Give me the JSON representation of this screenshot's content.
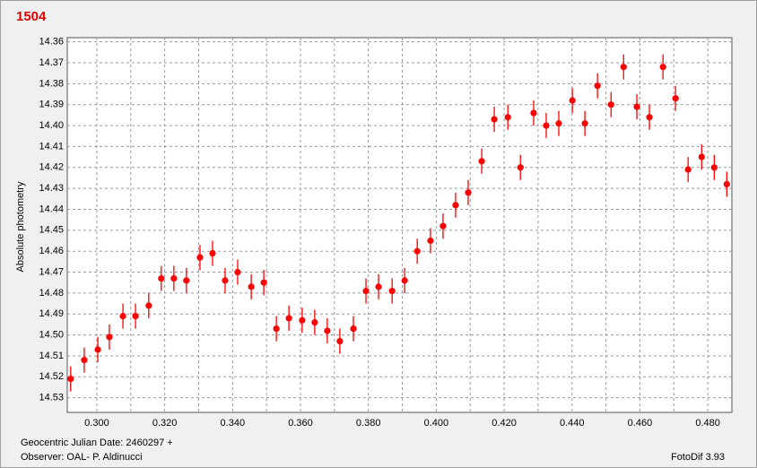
{
  "chart_data": {
    "type": "scatter",
    "title": "1504",
    "ylabel": "Absolute photometry",
    "footer_left": [
      "Geocentric Julian Date: 2460297 +",
      "Observer: OAL- P. Aldinucci"
    ],
    "footer_right": "FotoDif 3.93",
    "xlim": [
      0.2913,
      0.4871
    ],
    "ylim": [
      14.358,
      14.537
    ],
    "y_inverted": true,
    "grid": true,
    "xticks": [
      {
        "value": 0.3,
        "label": "0.300"
      },
      {
        "value": 0.32,
        "label": "0.320"
      },
      {
        "value": 0.34,
        "label": "0.340"
      },
      {
        "value": 0.36,
        "label": "0.360"
      },
      {
        "value": 0.38,
        "label": "0.380"
      },
      {
        "value": 0.4,
        "label": "0.400"
      },
      {
        "value": 0.42,
        "label": "0.420"
      },
      {
        "value": 0.44,
        "label": "0.440"
      },
      {
        "value": 0.46,
        "label": "0.460"
      },
      {
        "value": 0.48,
        "label": "0.480"
      }
    ],
    "xminor_ticks": [
      0.31,
      0.33,
      0.35,
      0.37,
      0.39,
      0.41,
      0.43,
      0.45,
      0.47
    ],
    "yticks": [
      14.36,
      14.37,
      14.38,
      14.39,
      {
        "value": 14.4,
        "label": "14.40"
      },
      14.41,
      14.42,
      14.43,
      14.44,
      14.45,
      14.46,
      14.47,
      14.48,
      14.49,
      {
        "value": 14.5,
        "label": "14.50"
      },
      14.51,
      14.52,
      14.53
    ],
    "series": [
      {
        "name": "1504",
        "color": "#ff0000",
        "error": 0.006,
        "x": [
          0.2923,
          0.2963,
          0.3003,
          0.3037,
          0.3077,
          0.3114,
          0.3153,
          0.319,
          0.3227,
          0.3264,
          0.3304,
          0.3341,
          0.3378,
          0.3415,
          0.3455,
          0.3492,
          0.3529,
          0.3566,
          0.3605,
          0.3642,
          0.3679,
          0.3716,
          0.3756,
          0.3793,
          0.383,
          0.387,
          0.3907,
          0.3944,
          0.3983,
          0.402,
          0.4057,
          0.4094,
          0.4134,
          0.4171,
          0.4211,
          0.4248,
          0.4287,
          0.4324,
          0.4361,
          0.4401,
          0.4438,
          0.4475,
          0.4515,
          0.4552,
          0.4591,
          0.4628,
          0.4668,
          0.4705,
          0.4742,
          0.4782,
          0.4819,
          0.4856
        ],
        "values": [
          14.521,
          14.512,
          14.507,
          14.501,
          14.491,
          14.491,
          14.486,
          14.473,
          14.473,
          14.474,
          14.463,
          14.461,
          14.474,
          14.47,
          14.477,
          14.475,
          14.497,
          14.492,
          14.493,
          14.494,
          14.498,
          14.503,
          14.497,
          14.479,
          14.477,
          14.479,
          14.474,
          14.46,
          14.455,
          14.448,
          14.438,
          14.432,
          14.417,
          14.397,
          14.396,
          14.42,
          14.394,
          14.4,
          14.399,
          14.388,
          14.399,
          14.381,
          14.39,
          14.372,
          14.391,
          14.396,
          14.372,
          14.387,
          14.421,
          14.415,
          14.42,
          14.428
        ]
      }
    ]
  }
}
